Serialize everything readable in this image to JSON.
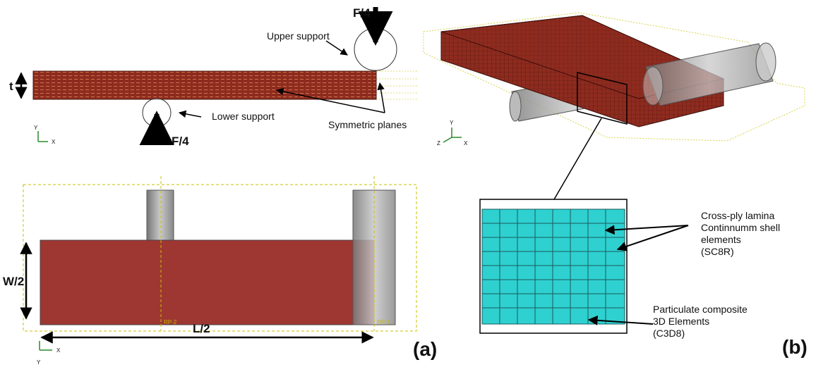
{
  "panel_a": {
    "label": "(a)",
    "side_view": {
      "load_top": "F/4",
      "load_bottom": "F/4",
      "thickness": "t",
      "upper_support": "Upper support",
      "lower_support": "Lower support",
      "symmetric_planes": "Symmetric planes",
      "axes": [
        "Y",
        "X"
      ]
    },
    "top_view": {
      "width": "W/2",
      "length": "L/2",
      "axes": [
        "Y",
        "X"
      ],
      "reference_points": [
        "RP-2",
        "RP-1"
      ]
    }
  },
  "panel_b": {
    "label": "(b)",
    "axes": [
      "Y",
      "Z",
      "X"
    ],
    "callouts": [
      {
        "lines": [
          "Cross-ply lamina",
          "Continnumm shell",
          "elements",
          "(SC8R)"
        ]
      },
      {
        "lines": [
          "Particulate composite",
          "3D Elements",
          "(C3D8)"
        ]
      }
    ]
  }
}
